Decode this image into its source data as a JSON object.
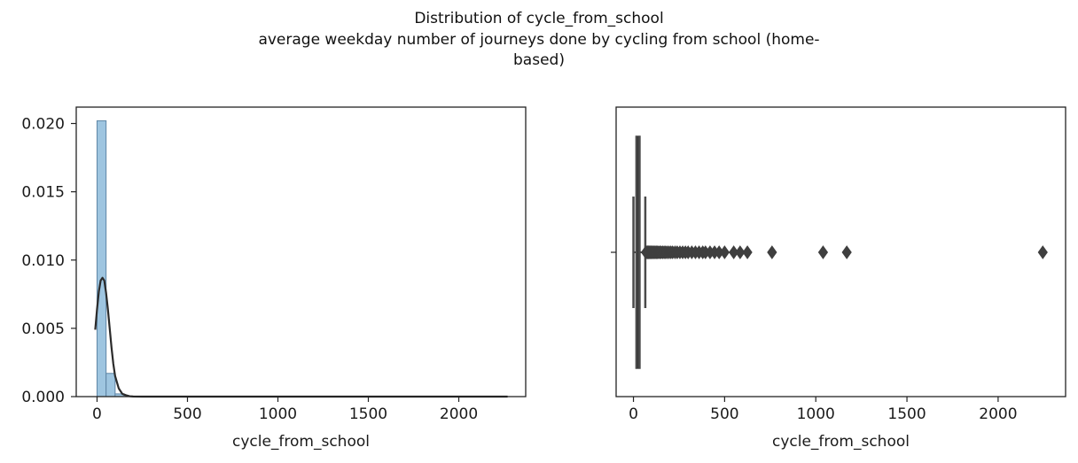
{
  "figure": {
    "title_lines": [
      "Distribution of cycle_from_school",
      "average weekday number of journeys done by cycling from school (home-",
      "based)"
    ]
  },
  "chart_data": [
    {
      "type": "bar",
      "subtype": "histogram-with-kde",
      "xlabel": "cycle_from_school",
      "ylabel": "",
      "xlim": [
        -115,
        2370
      ],
      "ylim": [
        0,
        0.0212
      ],
      "xticks": [
        0,
        500,
        1000,
        1500,
        2000
      ],
      "yticks": [
        0.0,
        0.005,
        0.01,
        0.015,
        0.02
      ],
      "ytick_labels": [
        "0.000",
        "0.005",
        "0.010",
        "0.015",
        "0.020"
      ],
      "bins": [
        {
          "x0": 0,
          "x1": 50,
          "value": 0.0202
        },
        {
          "x0": 50,
          "x1": 100,
          "value": 0.0017
        },
        {
          "x0": 100,
          "x1": 150,
          "value": 0.0002
        }
      ],
      "kde": {
        "x": [
          -10,
          0,
          10,
          20,
          30,
          40,
          50,
          60,
          70,
          80,
          90,
          100,
          120,
          140,
          160,
          180,
          200,
          250,
          300,
          500,
          1000,
          1500,
          2000,
          2270
        ],
        "y": [
          0.0049,
          0.0064,
          0.0077,
          0.0085,
          0.0087,
          0.0085,
          0.0076,
          0.0064,
          0.005,
          0.0036,
          0.0024,
          0.0015,
          0.0006,
          0.0002,
          0.0001,
          3e-05,
          1e-05,
          0,
          0,
          0,
          0,
          0,
          0,
          0
        ]
      },
      "colors": {
        "bar": "#9ec5e0",
        "bar_edge": "#5f86a6",
        "kde": "#2b2b2b"
      },
      "grid": false
    },
    {
      "type": "boxplot",
      "xlabel": "cycle_from_school",
      "xlim": [
        -95,
        2370
      ],
      "xticks": [
        0,
        500,
        1000,
        1500,
        2000
      ],
      "box": {
        "q1": 14,
        "median": 24,
        "q3": 36,
        "whisker_low": 0,
        "whisker_high": 65
      },
      "outliers": [
        68,
        72,
        76,
        80,
        84,
        88,
        92,
        96,
        100,
        105,
        110,
        115,
        120,
        126,
        132,
        138,
        145,
        152,
        160,
        168,
        176,
        185,
        195,
        205,
        215,
        228,
        240,
        255,
        270,
        285,
        300,
        320,
        340,
        360,
        380,
        395,
        420,
        445,
        470,
        500,
        550,
        585,
        625,
        760,
        1040,
        1170,
        2245
      ],
      "colors": {
        "box": "#4a4a4a",
        "outlier": "#3f3f3f"
      },
      "grid": false
    }
  ]
}
